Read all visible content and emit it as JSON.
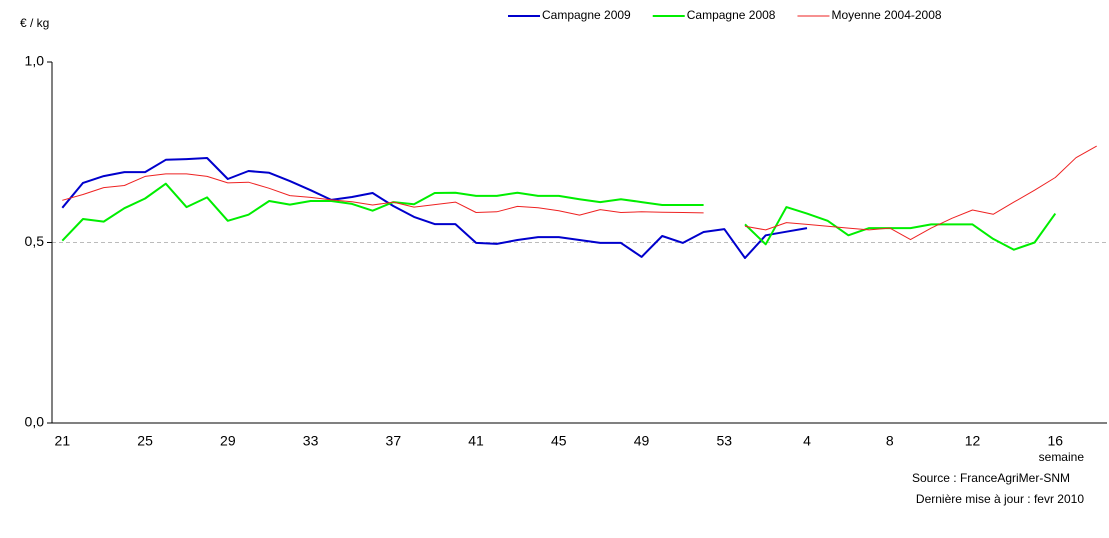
{
  "chart_data": {
    "type": "line",
    "y_unit": "€ / kg",
    "x_label": "semaine",
    "source": "Source : FranceAgriMer-SNM",
    "updated": "Dernière mise à jour : fevr 2010",
    "categories": [
      "21",
      null,
      null,
      null,
      "25",
      null,
      null,
      null,
      "29",
      null,
      null,
      null,
      "33",
      null,
      null,
      null,
      "37",
      null,
      null,
      null,
      "41",
      null,
      null,
      null,
      "45",
      null,
      null,
      null,
      "49",
      null,
      null,
      null,
      "53",
      null,
      null,
      null,
      "4",
      null,
      null,
      null,
      "8",
      null,
      null,
      null,
      "12",
      null,
      null,
      null,
      "16",
      null,
      null
    ],
    "series": [
      {
        "name": "Campagne 2009",
        "color": "#0000cc",
        "width": 2,
        "values": [
          0.596,
          0.665,
          0.684,
          0.695,
          0.695,
          0.729,
          0.731,
          0.734,
          0.676,
          0.698,
          0.693,
          0.67,
          0.645,
          0.618,
          0.626,
          0.637,
          0.601,
          0.571,
          0.551,
          0.551,
          0.499,
          0.496,
          0.507,
          0.515,
          0.515,
          0.507,
          0.499,
          0.499,
          0.46,
          0.518,
          0.499,
          0.529,
          0.537,
          0.457,
          0.52,
          0.53,
          0.54,
          null,
          null,
          null,
          null,
          null,
          null,
          null,
          null,
          null,
          null,
          null,
          null,
          null,
          null
        ]
      },
      {
        "name": "Campagne 2008",
        "color": "#00ee00",
        "width": 2,
        "values": [
          0.505,
          0.565,
          0.558,
          0.595,
          0.622,
          0.663,
          0.598,
          0.625,
          0.56,
          0.577,
          0.615,
          0.605,
          0.615,
          0.615,
          0.607,
          0.588,
          0.612,
          0.606,
          0.637,
          0.638,
          0.629,
          0.629,
          0.638,
          0.629,
          0.629,
          0.62,
          0.612,
          0.62,
          0.612,
          0.604,
          0.604,
          0.604,
          null,
          0.55,
          0.495,
          0.598,
          0.58,
          0.56,
          0.52,
          0.54,
          0.54,
          0.54,
          0.55,
          0.55,
          0.55,
          0.51,
          0.48,
          0.5,
          0.58,
          null,
          null
        ]
      },
      {
        "name": "Moyenne 2004-2008",
        "color": "#ee2222",
        "width": 1,
        "values": [
          0.617,
          0.633,
          0.652,
          0.658,
          0.683,
          0.69,
          0.69,
          0.683,
          0.665,
          0.667,
          0.65,
          0.63,
          0.625,
          0.618,
          0.613,
          0.604,
          0.612,
          0.598,
          0.605,
          0.612,
          0.583,
          0.585,
          0.6,
          0.596,
          0.588,
          0.576,
          0.591,
          0.583,
          0.585,
          0.584,
          0.583,
          0.582,
          null,
          0.545,
          0.535,
          0.555,
          0.55,
          0.545,
          0.54,
          0.535,
          0.54,
          0.508,
          0.54,
          0.567,
          0.59,
          0.578,
          0.612,
          0.645,
          0.68,
          0.735,
          0.767
        ]
      }
    ],
    "ylim": [
      0,
      1
    ],
    "yticks": [
      {
        "value": 0,
        "label": "0,0"
      },
      {
        "value": 0.5,
        "label": "0,5"
      },
      {
        "value": 1,
        "label": "1,0"
      }
    ],
    "grid": true,
    "legend": "top-right"
  }
}
